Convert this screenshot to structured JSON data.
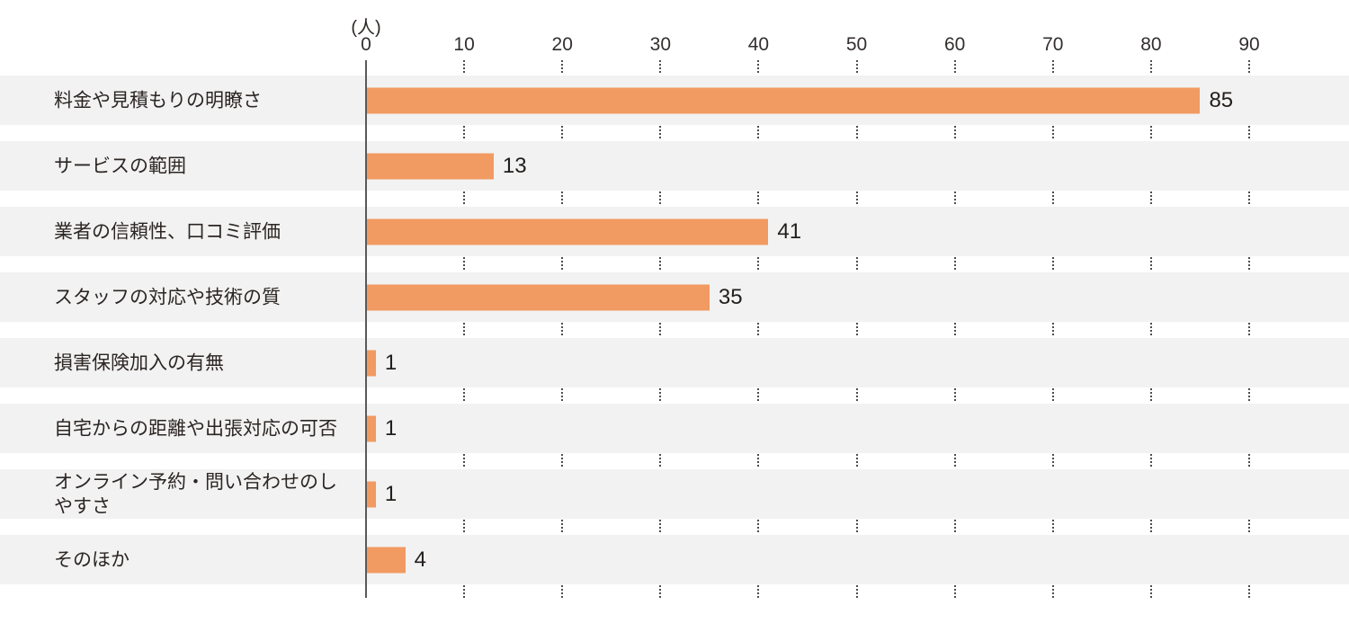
{
  "chart_data": {
    "type": "bar",
    "orientation": "horizontal",
    "title": "",
    "unit_label": "(人)",
    "categories": [
      "料金や見積もりの明瞭さ",
      "サービスの範囲",
      "業者の信頼性、口コミ評価",
      "スタッフの対応や技術の質",
      "損害保険加入の有無",
      "自宅からの距離や出張対応の可否",
      "オンライン予約・問い合わせのしやすさ",
      "そのほか"
    ],
    "values": [
      85,
      13,
      41,
      35,
      1,
      1,
      1,
      4
    ],
    "x_ticks": [
      0,
      10,
      20,
      30,
      40,
      50,
      60,
      70,
      80,
      90
    ],
    "xlim": [
      0,
      90
    ],
    "grid": "dotted-vertical-in-row-gaps",
    "legend": "none",
    "colors": {
      "bar": "#f19a62",
      "row_band": "#f2f2f2",
      "axis_line": "#595959",
      "grid_dots": "#4d4d4d",
      "text": "#2b2523"
    }
  }
}
